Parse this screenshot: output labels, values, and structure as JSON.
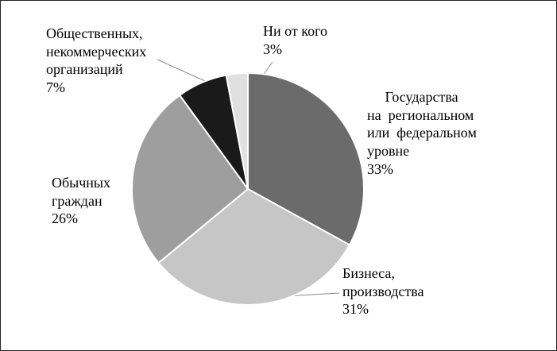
{
  "chart_data": {
    "type": "pie",
    "title": "",
    "legend_position": "none",
    "slice_border_color": "#ffffff",
    "start_angle_deg": 0,
    "direction": "clockwise",
    "slices": [
      {
        "label": "Государства на региональном или федеральном уровне",
        "value": 33,
        "color": "#6b6b6b"
      },
      {
        "label": "Бизнеса, производства",
        "value": 31,
        "color": "#c6c6c6"
      },
      {
        "label": "Обычных граждан",
        "value": 26,
        "color": "#9e9e9e"
      },
      {
        "label": "Общественных, некоммерческих организаций",
        "value": 7,
        "color": "#1a1a1a"
      },
      {
        "label": "Ни от кого",
        "value": 3,
        "color": "#e0e0e0"
      }
    ],
    "labels_display": {
      "state": "     Государства\nна  региональном\nили  федеральном\nуровне\n33%",
      "business": "Бизнеса,\nпроизводства\n31%",
      "citizens": "Обычных\nграждан\n26%",
      "ngo": "Общественных,\nнекоммерческих\nорганизаций\n7%",
      "none": "Ни от кого\n3%"
    }
  }
}
